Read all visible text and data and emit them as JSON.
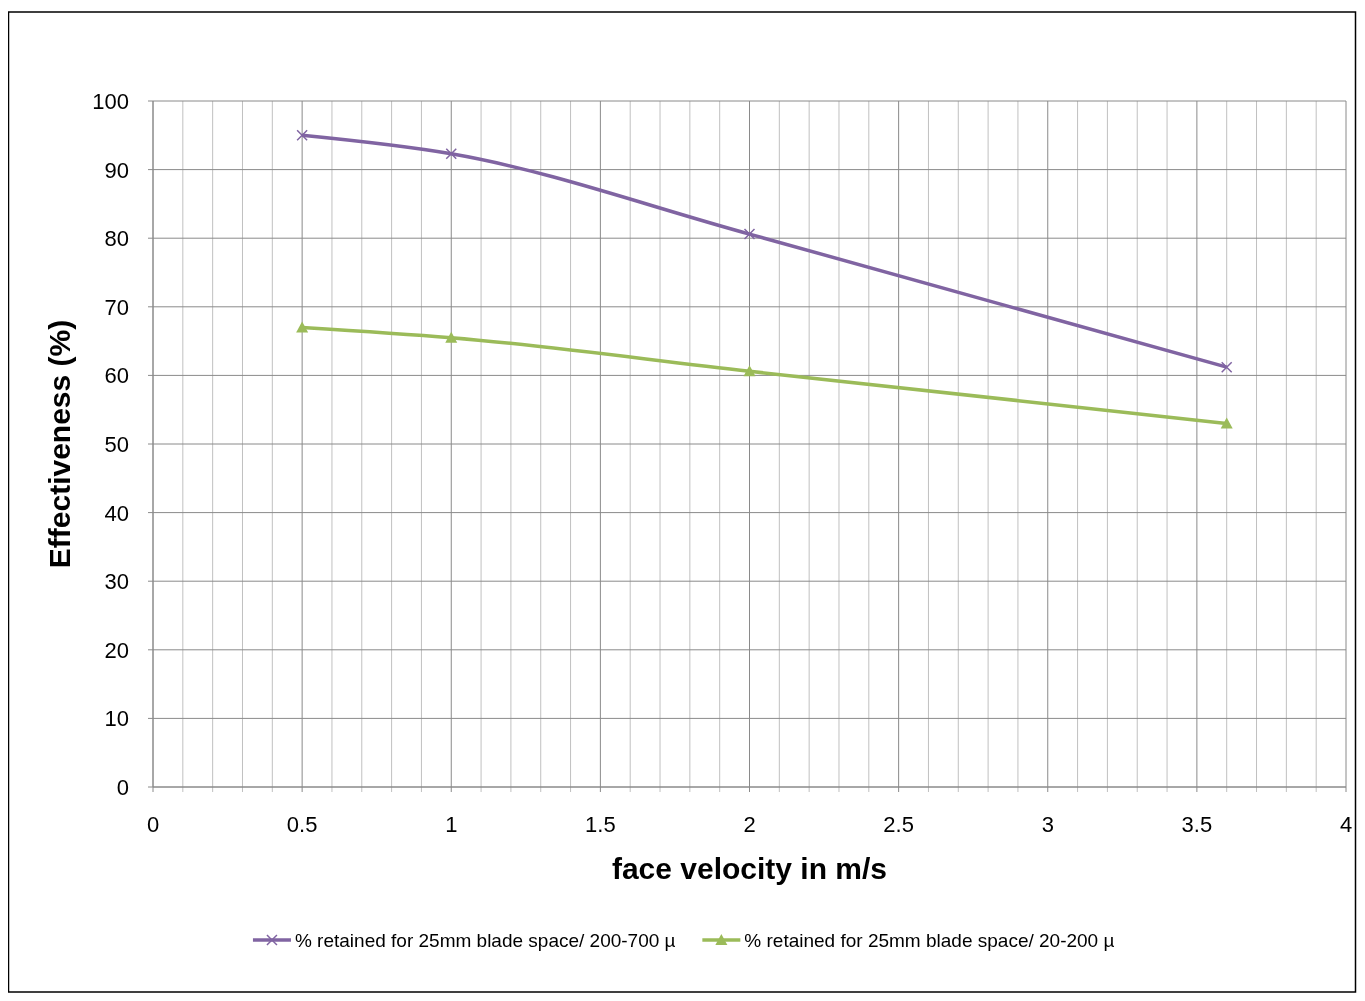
{
  "chart_data": {
    "type": "line",
    "xlabel": "face velocity in m/s",
    "ylabel": "Effectiveness (%)",
    "xlim": [
      0,
      4
    ],
    "xticks": [
      0,
      {
        "value": 0.1,
        "label": null
      },
      {
        "value": 0.2,
        "label": null
      },
      {
        "value": 0.3,
        "label": null
      },
      {
        "value": 0.4,
        "label": null
      },
      0.5,
      {
        "value": 0.6,
        "label": null
      },
      {
        "value": 0.7,
        "label": null
      },
      {
        "value": 0.8,
        "label": null
      },
      {
        "value": 0.9,
        "label": null
      },
      1,
      {
        "value": 1.1,
        "label": null
      },
      {
        "value": 1.2,
        "label": null
      },
      {
        "value": 1.3,
        "label": null
      },
      {
        "value": 1.4,
        "label": null
      },
      1.5,
      {
        "value": 1.6,
        "label": null
      },
      {
        "value": 1.7,
        "label": null
      },
      {
        "value": 1.8,
        "label": null
      },
      {
        "value": 1.9,
        "label": null
      },
      2,
      {
        "value": 2.1,
        "label": null
      },
      {
        "value": 2.2,
        "label": null
      },
      {
        "value": 2.3,
        "label": null
      },
      {
        "value": 2.4,
        "label": null
      },
      2.5,
      {
        "value": 2.6,
        "label": null
      },
      {
        "value": 2.7,
        "label": null
      },
      {
        "value": 2.8,
        "label": null
      },
      {
        "value": 2.9,
        "label": null
      },
      3,
      {
        "value": 3.1,
        "label": null
      },
      {
        "value": 3.2,
        "label": null
      },
      {
        "value": 3.3,
        "label": null
      },
      {
        "value": 3.4,
        "label": null
      },
      3.5,
      {
        "value": 3.6,
        "label": null
      },
      {
        "value": 3.7,
        "label": null
      },
      {
        "value": 3.8,
        "label": null
      },
      {
        "value": 3.9,
        "label": null
      },
      4
    ],
    "ylim": [
      0,
      100
    ],
    "yticks": [
      0,
      10,
      20,
      30,
      40,
      50,
      60,
      70,
      80,
      90,
      100
    ],
    "grid": true,
    "legend": "bottom",
    "line_style": "solid",
    "x": [
      0.5,
      1,
      2,
      3.6
    ],
    "series": [
      {
        "name": "% retained for 25mm blade space/ 200-700 µ",
        "color": "#8064a2",
        "marker": "cross",
        "values": [
          95,
          92.3,
          80.6,
          61.2
        ]
      },
      {
        "name": "% retained for 25mm blade space/ 20-200 µ",
        "color": "#9bbb59",
        "marker": "triangle",
        "values": [
          67,
          65.5,
          60.6,
          53
        ]
      }
    ]
  }
}
